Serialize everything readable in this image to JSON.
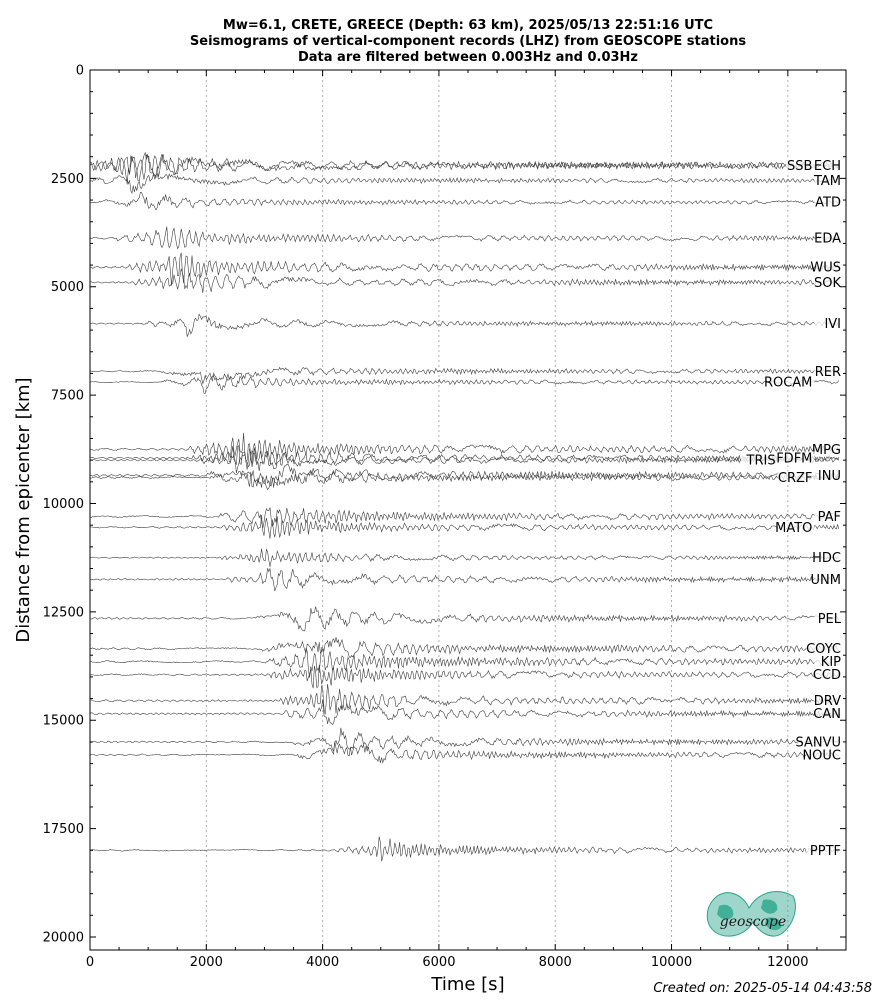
{
  "title_lines": [
    "Mw=6.1, CRETE, GREECE (Depth: 63 km), 2025/05/13 22:51:16 UTC",
    "Seismograms of vertical-component records (LHZ) from GEOSCOPE stations",
    "Data are filtered between 0.003Hz and 0.03Hz"
  ],
  "footer": "Created on: 2025-05-14 04:43:58",
  "logo_text": "geoscope",
  "colors": {
    "trace": "#404040",
    "logo": "#2aa58c",
    "grid": "#b0b0b0"
  },
  "chart_data": {
    "type": "line",
    "xlabel": "Time [s]",
    "ylabel": "Distance from epicenter [km]",
    "xlim": [
      0,
      13000
    ],
    "ylim": [
      0,
      20300
    ],
    "y_inverted": true,
    "xticks": [
      0,
      2000,
      4000,
      6000,
      8000,
      10000,
      12000
    ],
    "yticks": [
      0,
      2500,
      5000,
      7500,
      10000,
      12500,
      15000,
      17500,
      20000
    ],
    "grid": "vertical dotted at x ticks",
    "stations": [
      {
        "name": "ECH",
        "distance": 2200,
        "arrival": 600,
        "amp": 1.6
      },
      {
        "name": "SSB",
        "distance": 2200,
        "arrival": 600,
        "amp": 1.6
      },
      {
        "name": "TAM",
        "distance": 2550,
        "arrival": 700,
        "amp": 1.0
      },
      {
        "name": "ATD",
        "distance": 3050,
        "arrival": 850,
        "amp": 0.9
      },
      {
        "name": "EDA",
        "distance": 3880,
        "arrival": 1100,
        "amp": 1.2
      },
      {
        "name": "WUS",
        "distance": 4550,
        "arrival": 1350,
        "amp": 1.5
      },
      {
        "name": "SOK",
        "distance": 4900,
        "arrival": 1450,
        "amp": 1.3
      },
      {
        "name": "IVI",
        "distance": 5850,
        "arrival": 1650,
        "amp": 1.0
      },
      {
        "name": "RER",
        "distance": 6950,
        "arrival": 1900,
        "amp": 1.0
      },
      {
        "name": "ROCAM",
        "distance": 7200,
        "arrival": 1950,
        "amp": 0.9
      },
      {
        "name": "MPG",
        "distance": 8750,
        "arrival": 2400,
        "amp": 1.6
      },
      {
        "name": "FDFM",
        "distance": 8950,
        "arrival": 2450,
        "amp": 1.3
      },
      {
        "name": "TRIS",
        "distance": 9000,
        "arrival": 2500,
        "amp": 1.2
      },
      {
        "name": "INU",
        "distance": 9350,
        "arrival": 2700,
        "amp": 1.5
      },
      {
        "name": "CRZF",
        "distance": 9400,
        "arrival": 2750,
        "amp": 1.3
      },
      {
        "name": "PAF",
        "distance": 10300,
        "arrival": 2850,
        "amp": 1.4
      },
      {
        "name": "MATO",
        "distance": 10550,
        "arrival": 2950,
        "amp": 1.2
      },
      {
        "name": "HDC",
        "distance": 11250,
        "arrival": 2950,
        "amp": 0.9
      },
      {
        "name": "UNM",
        "distance": 11750,
        "arrival": 3050,
        "amp": 1.2
      },
      {
        "name": "PEL",
        "distance": 12650,
        "arrival": 3550,
        "amp": 1.3
      },
      {
        "name": "COYC",
        "distance": 13350,
        "arrival": 3650,
        "amp": 1.5
      },
      {
        "name": "KIP",
        "distance": 13650,
        "arrival": 3700,
        "amp": 1.5
      },
      {
        "name": "CCD",
        "distance": 13950,
        "arrival": 3750,
        "amp": 1.3
      },
      {
        "name": "DRV",
        "distance": 14550,
        "arrival": 3950,
        "amp": 1.4
      },
      {
        "name": "CAN",
        "distance": 14850,
        "arrival": 4000,
        "amp": 1.3
      },
      {
        "name": "SANVU",
        "distance": 15500,
        "arrival": 4150,
        "amp": 1.2
      },
      {
        "name": "NOUC",
        "distance": 15800,
        "arrival": 4200,
        "amp": 1.2
      },
      {
        "name": "PPTF",
        "distance": 18000,
        "arrival": 4900,
        "amp": 1.1
      }
    ]
  }
}
